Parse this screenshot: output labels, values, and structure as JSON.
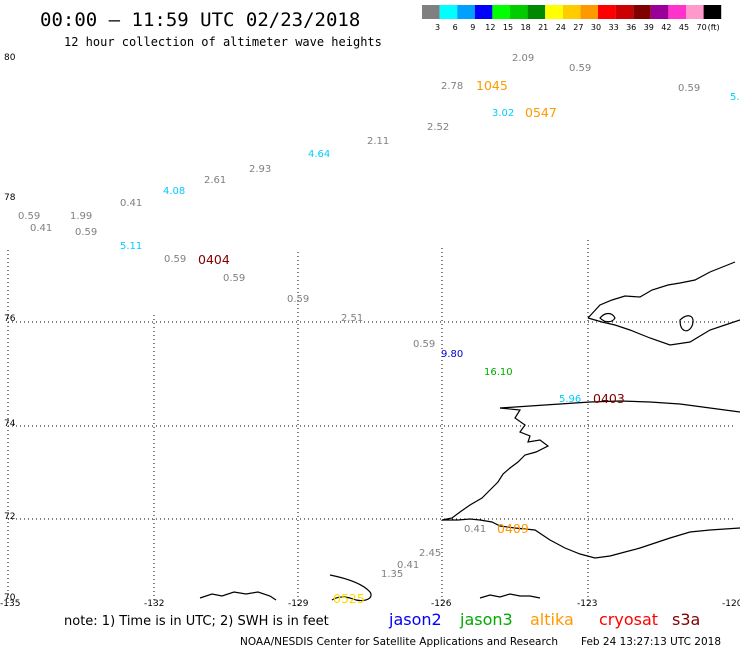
{
  "header": {
    "title": "00:00 – 11:59 UTC 02/23/2018",
    "subtitle": "12 hour collection of altimeter wave heights"
  },
  "legend": {
    "unit": "(ft)",
    "bins": [
      {
        "label": "3",
        "color": "#808080"
      },
      {
        "label": "6",
        "color": "#00ffff"
      },
      {
        "label": "9",
        "color": "#00a0ff"
      },
      {
        "label": "12",
        "color": "#0000ff"
      },
      {
        "label": "15",
        "color": "#00ff00"
      },
      {
        "label": "18",
        "color": "#00cc00"
      },
      {
        "label": "21",
        "color": "#008800"
      },
      {
        "label": "24",
        "color": "#ffff00"
      },
      {
        "label": "27",
        "color": "#ffcc00"
      },
      {
        "label": "30",
        "color": "#ff9900"
      },
      {
        "label": "33",
        "color": "#ff0000"
      },
      {
        "label": "36",
        "color": "#cc0000"
      },
      {
        "label": "39",
        "color": "#800000"
      },
      {
        "label": "42",
        "color": "#990099"
      },
      {
        "label": "45",
        "color": "#ff33cc"
      },
      {
        "label": "70",
        "color": "#ff99cc"
      },
      {
        "label": "",
        "color": "#000000"
      }
    ]
  },
  "axes": {
    "lon_labels": [
      "-135",
      "-132",
      "-129",
      "-126",
      "-123",
      "-120"
    ],
    "lat_labels": [
      "80",
      "78",
      "76",
      "74",
      "72",
      "70"
    ]
  },
  "observations": [
    {
      "text": "2.09",
      "color": "#808080"
    },
    {
      "text": "0.59",
      "color": "#808080"
    },
    {
      "text": "0.59",
      "color": "#808080"
    },
    {
      "text": "5.",
      "color": "#00ccff"
    },
    {
      "text": "2.78",
      "color": "#808080"
    },
    {
      "text": "3.02",
      "color": "#00ccff"
    },
    {
      "text": "2.52",
      "color": "#808080"
    },
    {
      "text": "2.11",
      "color": "#808080"
    },
    {
      "text": "4.64",
      "color": "#00ccff"
    },
    {
      "text": "2.93",
      "color": "#808080"
    },
    {
      "text": "2.61",
      "color": "#808080"
    },
    {
      "text": "4.08",
      "color": "#00ccff"
    },
    {
      "text": "0.41",
      "color": "#808080"
    },
    {
      "text": "0.59",
      "color": "#808080"
    },
    {
      "text": "1.99",
      "color": "#808080"
    },
    {
      "text": "0.41",
      "color": "#808080"
    },
    {
      "text": "0.59",
      "color": "#808080"
    },
    {
      "text": "5.11",
      "color": "#00ccff"
    },
    {
      "text": "0.59",
      "color": "#808080"
    },
    {
      "text": "0.59",
      "color": "#808080"
    },
    {
      "text": "0.59",
      "color": "#808080"
    },
    {
      "text": "2.51",
      "color": "#808080"
    },
    {
      "text": "0.59",
      "color": "#808080"
    },
    {
      "text": "9.80",
      "color": "#0000cc"
    },
    {
      "text": "16.10",
      "color": "#00aa00"
    },
    {
      "text": "5.96",
      "color": "#00ccff"
    },
    {
      "text": "0.41",
      "color": "#808080"
    },
    {
      "text": "2.45",
      "color": "#808080"
    },
    {
      "text": "0.41",
      "color": "#808080"
    },
    {
      "text": "1.35",
      "color": "#808080"
    }
  ],
  "pass_times": [
    {
      "text": "1045",
      "color": "#ff9900"
    },
    {
      "text": "0547",
      "color": "#ff9900"
    },
    {
      "text": "0404",
      "color": "#800000"
    },
    {
      "text": "0403",
      "color": "#800000"
    },
    {
      "text": "0409",
      "color": "#ff9900"
    },
    {
      "text": "0525",
      "color": "#ffdd00"
    }
  ],
  "footer": {
    "note": "note: 1) Time is in UTC; 2) SWH is in feet",
    "missions": [
      {
        "name": "jason2",
        "color": "#0000ff"
      },
      {
        "name": "jason3",
        "color": "#00aa00"
      },
      {
        "name": "altika",
        "color": "#ff9900"
      },
      {
        "name": "cryosat",
        "color": "#ff0000"
      },
      {
        "name": "s3a",
        "color": "#800000"
      }
    ],
    "credit": "NOAA/NESDIS Center for Satellite Applications and Research",
    "timestamp": "Feb 24 13:27:13 UTC 2018"
  }
}
